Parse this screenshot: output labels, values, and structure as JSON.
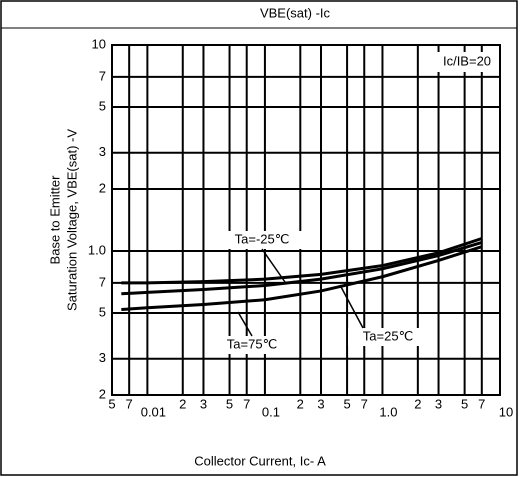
{
  "chart_data": {
    "type": "line",
    "title": "VBE(sat) -Ic",
    "xlabel": "Collector Current, Ic- A",
    "ylabel": [
      "Base to Emitter",
      "Saturation Voltage, VBE(sat) -V"
    ],
    "legend_note": "Ic/IB=20",
    "log_x": true,
    "log_y": true,
    "grid": true,
    "x": [
      0.006,
      0.01,
      0.03,
      0.1,
      0.3,
      1,
      3,
      7
    ],
    "series": [
      {
        "name": "Ta=-25℃",
        "color": "#000000",
        "values": [
          0.7,
          0.7,
          0.71,
          0.73,
          0.77,
          0.85,
          0.98,
          1.15
        ]
      },
      {
        "name": "Ta=25℃",
        "color": "#000000",
        "values": [
          0.62,
          0.63,
          0.65,
          0.68,
          0.73,
          0.82,
          0.95,
          1.1
        ]
      },
      {
        "name": "Ta=75℃",
        "color": "#000000",
        "values": [
          0.52,
          0.53,
          0.55,
          0.58,
          0.64,
          0.75,
          0.9,
          1.05
        ]
      }
    ],
    "xlim": [
      0.005,
      10
    ],
    "ylim": [
      0.2,
      10
    ],
    "xticks": [
      {
        "value": 0.005,
        "label": "5"
      },
      {
        "value": 0.007,
        "label": "7"
      },
      0.01,
      {
        "value": 0.02,
        "label": "2"
      },
      {
        "value": 0.03,
        "label": "3"
      },
      {
        "value": 0.05,
        "label": "5"
      },
      {
        "value": 0.07,
        "label": "7"
      },
      0.1,
      {
        "value": 0.2,
        "label": "2"
      },
      {
        "value": 0.3,
        "label": "3"
      },
      {
        "value": 0.5,
        "label": "5"
      },
      {
        "value": 0.7,
        "label": "7"
      },
      {
        "value": 1,
        "label": "1.0"
      },
      {
        "value": 2,
        "label": "2"
      },
      {
        "value": 3,
        "label": "3"
      },
      {
        "value": 5,
        "label": "5"
      },
      {
        "value": 7,
        "label": "7"
      },
      10
    ],
    "yticks": [
      {
        "value": 0.2,
        "label": "2"
      },
      {
        "value": 0.3,
        "label": "3"
      },
      {
        "value": 0.5,
        "label": "5"
      },
      {
        "value": 0.7,
        "label": "7"
      },
      {
        "value": 1,
        "label": "1.0"
      },
      2,
      3,
      5,
      7,
      10
    ]
  }
}
